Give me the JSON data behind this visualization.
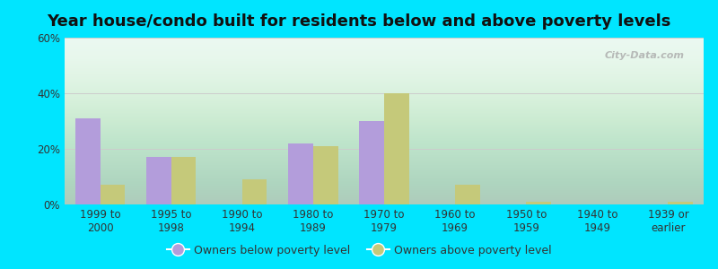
{
  "title": "Year house/condo built for residents below and above poverty levels",
  "categories": [
    "1999 to\n2000",
    "1995 to\n1998",
    "1990 to\n1994",
    "1980 to\n1989",
    "1970 to\n1979",
    "1960 to\n1969",
    "1950 to\n1959",
    "1940 to\n1949",
    "1939 or\nearlier"
  ],
  "below_poverty": [
    31,
    17,
    0,
    22,
    30,
    0,
    0,
    0,
    0
  ],
  "above_poverty": [
    7,
    17,
    9,
    21,
    40,
    7,
    1,
    0,
    1
  ],
  "below_color": "#b39ddb",
  "above_color": "#c5c97a",
  "ylim": [
    0,
    60
  ],
  "yticks": [
    0,
    20,
    40,
    60
  ],
  "ytick_labels": [
    "0%",
    "20%",
    "40%",
    "60%"
  ],
  "background_outer": "#00e5ff",
  "grid_color": "#cccccc",
  "bar_width": 0.35,
  "legend_below_label": "Owners below poverty level",
  "legend_above_label": "Owners above poverty level",
  "title_fontsize": 13,
  "axis_fontsize": 8.5,
  "legend_fontsize": 9,
  "watermark_text": "City-Data.com"
}
